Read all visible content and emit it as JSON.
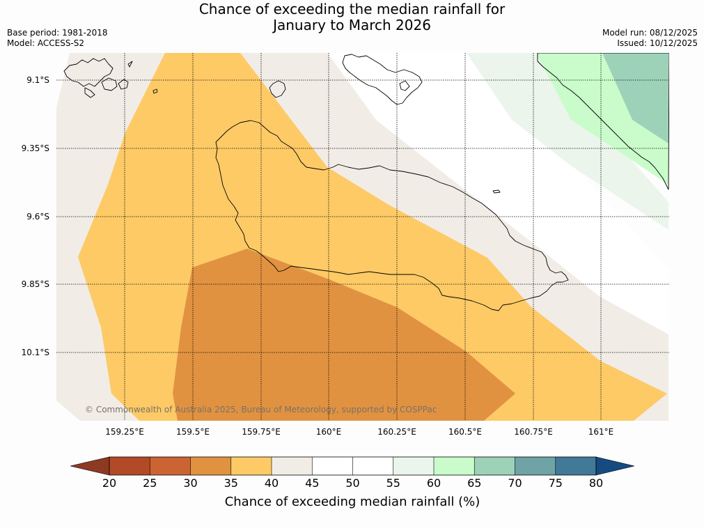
{
  "header": {
    "title_line1": "Chance of exceeding the median rainfall for",
    "title_line2": "January to March 2026",
    "base_period": "Base period: 1981-2018",
    "model": "Model: ACCESS-S2",
    "model_run": "Model run: 08/12/2025",
    "issued": "Issued: 10/12/2025"
  },
  "map": {
    "copyright": "© Commonwealth of Australia 2025, Bureau of Meteorology, supported by COSPPac",
    "lat_labels": [
      "9.1°S",
      "9.35°S",
      "9.6°S",
      "9.85°S",
      "10.1°S"
    ],
    "lon_labels": [
      "159.25°E",
      "159.5°E",
      "159.75°E",
      "160°E",
      "160.25°E",
      "160.5°E",
      "160.75°E",
      "161°E"
    ]
  },
  "colorbar": {
    "title": "Chance of exceeding median rainfall (%)",
    "ticks": [
      "20",
      "25",
      "30",
      "35",
      "40",
      "45",
      "50",
      "55",
      "60",
      "65",
      "70",
      "75",
      "80"
    ],
    "colors": {
      "below_20": "#8e3a22",
      "c20_25": "#b24a27",
      "c25_30": "#cb6432",
      "c30_35": "#e19241",
      "c35_40": "#fdca66",
      "c40_45": "#f1ece6",
      "c45_50": "#ffffff",
      "c50_55": "#ffffff",
      "c55_60": "#ebf5ec",
      "c60_65": "#c9fcca",
      "c65_70": "#9dd2b9",
      "c70_75": "#6fa3a6",
      "c75_80": "#417999",
      "above_80": "#164b82"
    }
  }
}
